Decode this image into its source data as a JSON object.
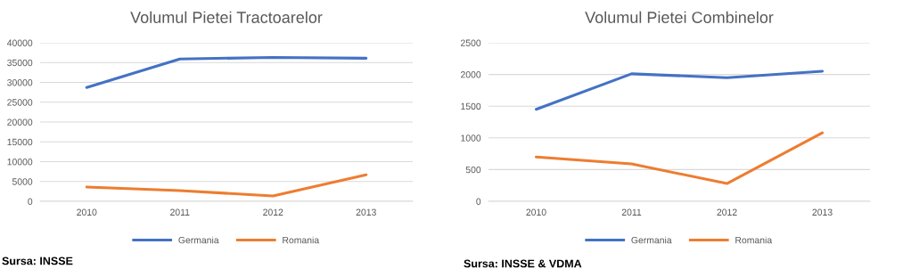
{
  "chart_data": [
    {
      "type": "line",
      "title": "Volumul Pietei Tractoarelor",
      "categories": [
        "2010",
        "2011",
        "2012",
        "2013"
      ],
      "series": [
        {
          "name": "Germania",
          "color": "#4472c4",
          "values": [
            28700,
            35900,
            36300,
            36100
          ]
        },
        {
          "name": "Romania",
          "color": "#ed7d31",
          "values": [
            3600,
            2700,
            1350,
            6700
          ]
        }
      ],
      "ylim": [
        0,
        40000
      ],
      "yticks": [
        0,
        5000,
        10000,
        15000,
        20000,
        25000,
        30000,
        35000,
        40000
      ],
      "grid": "y",
      "legend": "bottom",
      "marker": "none",
      "line_style": "solid",
      "annotations": [
        "Sursa: INSSE"
      ]
    },
    {
      "type": "line",
      "title": "Volumul Pietei Combinelor",
      "categories": [
        "2010",
        "2011",
        "2012",
        "2013"
      ],
      "series": [
        {
          "name": "Germania",
          "color": "#4472c4",
          "values": [
            1450,
            2010,
            1950,
            2050
          ]
        },
        {
          "name": "Romania",
          "color": "#ed7d31",
          "values": [
            700,
            590,
            280,
            1080
          ]
        }
      ],
      "ylim": [
        0,
        2500
      ],
      "yticks": [
        0,
        500,
        1000,
        1500,
        2000,
        2500
      ],
      "grid": "y",
      "legend": "bottom",
      "marker": "none",
      "line_style": "solid",
      "annotations": [
        "Sursa: INSSE & VDMA"
      ]
    }
  ]
}
